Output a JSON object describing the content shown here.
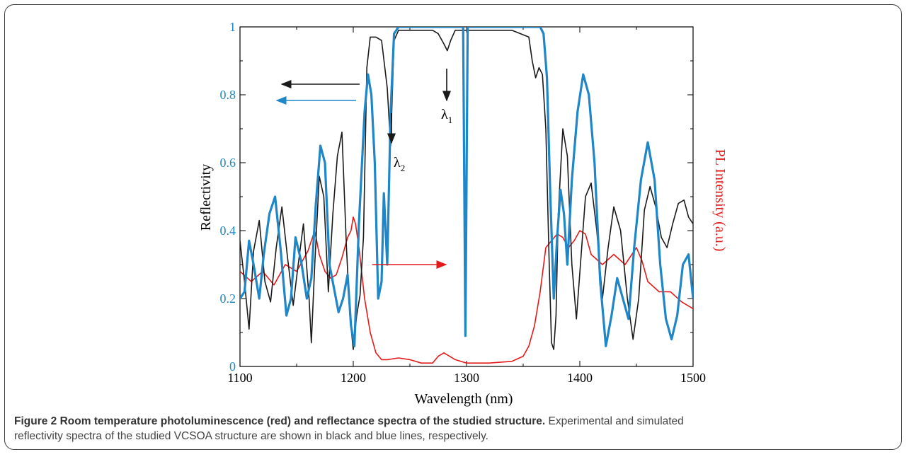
{
  "chart_data": {
    "type": "line",
    "xlabel": "Wavelength (nm)",
    "ylabel_left": "Reflectivity",
    "ylabel_right": "PL Intensity (a.u.)",
    "xlim": [
      1100,
      1500
    ],
    "ylim": [
      0,
      1
    ],
    "x_ticks": [
      "1100",
      "1200",
      "1300",
      "1400",
      "1500"
    ],
    "y_ticks": [
      "0",
      "0.2",
      "0.4",
      "0.6",
      "0.8",
      "1"
    ],
    "grid": false,
    "annotations": [
      {
        "text": "λ",
        "sub": "1",
        "x": 1283,
        "y": 0.73
      },
      {
        "text": "λ",
        "sub": "2",
        "x": 1234,
        "y": 0.59
      }
    ],
    "colors": {
      "experimental": "#1a1a1a",
      "simulated": "#1f86c8",
      "pl": "#e41a1a",
      "left_axis_ticks": "#1f86c8",
      "right_axis_label": "#e41a1a"
    },
    "series": [
      {
        "x": [
          1100,
          1104,
          1108,
          1112,
          1117,
          1122,
          1127,
          1132,
          1137,
          1142,
          1147,
          1151,
          1156,
          1161,
          1163,
          1166,
          1170,
          1174,
          1178,
          1182,
          1186,
          1190,
          1194,
          1197,
          1200,
          1203,
          1206,
          1209,
          1212,
          1215,
          1220,
          1225,
          1230,
          1233,
          1236,
          1240,
          1250,
          1260,
          1270,
          1275,
          1280,
          1283,
          1286,
          1290,
          1300,
          1320,
          1340,
          1355,
          1358,
          1361,
          1364,
          1367,
          1370,
          1373,
          1375,
          1377,
          1379,
          1381,
          1385,
          1389,
          1393,
          1397,
          1401,
          1405,
          1410,
          1415,
          1420,
          1425,
          1430,
          1436,
          1442,
          1447,
          1452,
          1457,
          1462,
          1467,
          1472,
          1477,
          1482,
          1487,
          1492,
          1496,
          1500
        ],
        "y": [
          0.37,
          0.25,
          0.11,
          0.34,
          0.43,
          0.25,
          0.19,
          0.35,
          0.47,
          0.32,
          0.18,
          0.29,
          0.42,
          0.2,
          0.07,
          0.3,
          0.56,
          0.5,
          0.22,
          0.45,
          0.62,
          0.69,
          0.35,
          0.15,
          0.05,
          0.15,
          0.21,
          0.38,
          0.88,
          0.97,
          0.97,
          0.96,
          0.82,
          0.65,
          0.96,
          0.99,
          0.99,
          0.99,
          0.99,
          0.98,
          0.95,
          0.93,
          0.96,
          0.99,
          0.99,
          0.99,
          0.99,
          0.97,
          0.9,
          0.85,
          0.88,
          0.86,
          0.7,
          0.3,
          0.07,
          0.05,
          0.15,
          0.45,
          0.7,
          0.62,
          0.3,
          0.14,
          0.32,
          0.5,
          0.54,
          0.4,
          0.2,
          0.35,
          0.47,
          0.4,
          0.2,
          0.08,
          0.2,
          0.46,
          0.53,
          0.47,
          0.38,
          0.35,
          0.42,
          0.48,
          0.49,
          0.44,
          0.42
        ]
      },
      {
        "x": [
          1100,
          1104,
          1108,
          1112,
          1117,
          1121,
          1126,
          1131,
          1136,
          1141,
          1145,
          1149,
          1154,
          1159,
          1163,
          1167,
          1171,
          1175,
          1179,
          1183,
          1187,
          1191,
          1195,
          1198,
          1201,
          1205,
          1210,
          1213,
          1216,
          1219,
          1222,
          1225,
          1227,
          1230,
          1233,
          1236,
          1240,
          1250,
          1270,
          1290,
          1297,
          1299,
          1301,
          1303,
          1310,
          1330,
          1350,
          1365,
          1368,
          1371,
          1374,
          1377,
          1380,
          1383,
          1386,
          1389,
          1393,
          1398,
          1403,
          1408,
          1413,
          1418,
          1423,
          1428,
          1433,
          1438,
          1443,
          1448,
          1454,
          1460,
          1466,
          1471,
          1476,
          1481,
          1486,
          1491,
          1496,
          1500
        ],
        "y": [
          0.2,
          0.22,
          0.37,
          0.3,
          0.2,
          0.33,
          0.45,
          0.5,
          0.34,
          0.15,
          0.2,
          0.38,
          0.31,
          0.2,
          0.26,
          0.48,
          0.65,
          0.6,
          0.3,
          0.23,
          0.16,
          0.2,
          0.27,
          0.12,
          0.06,
          0.42,
          0.75,
          0.86,
          0.8,
          0.6,
          0.2,
          0.25,
          0.51,
          0.3,
          0.75,
          0.98,
          1.0,
          1.0,
          1.0,
          1.0,
          1.0,
          0.09,
          1.0,
          1.0,
          1.0,
          1.0,
          1.0,
          1.0,
          0.98,
          0.85,
          0.5,
          0.2,
          0.38,
          0.52,
          0.45,
          0.3,
          0.55,
          0.75,
          0.86,
          0.8,
          0.6,
          0.25,
          0.06,
          0.15,
          0.26,
          0.2,
          0.14,
          0.35,
          0.55,
          0.66,
          0.55,
          0.3,
          0.14,
          0.08,
          0.15,
          0.3,
          0.33,
          0.2
        ]
      },
      {
        "x": [
          1100,
          1110,
          1120,
          1130,
          1140,
          1150,
          1160,
          1166,
          1170,
          1175,
          1180,
          1185,
          1190,
          1195,
          1198,
          1200,
          1202,
          1205,
          1210,
          1215,
          1220,
          1225,
          1230,
          1240,
          1250,
          1260,
          1270,
          1275,
          1280,
          1285,
          1290,
          1300,
          1320,
          1340,
          1350,
          1355,
          1360,
          1365,
          1370,
          1375,
          1380,
          1385,
          1390,
          1395,
          1400,
          1405,
          1410,
          1420,
          1430,
          1440,
          1450,
          1455,
          1460,
          1470,
          1480,
          1490,
          1500
        ],
        "y": [
          0.28,
          0.25,
          0.28,
          0.24,
          0.3,
          0.28,
          0.34,
          0.4,
          0.33,
          0.28,
          0.26,
          0.27,
          0.32,
          0.38,
          0.4,
          0.44,
          0.42,
          0.35,
          0.2,
          0.1,
          0.04,
          0.02,
          0.02,
          0.025,
          0.02,
          0.01,
          0.01,
          0.03,
          0.04,
          0.03,
          0.02,
          0.01,
          0.01,
          0.015,
          0.03,
          0.06,
          0.12,
          0.22,
          0.35,
          0.37,
          0.39,
          0.38,
          0.35,
          0.37,
          0.4,
          0.39,
          0.33,
          0.3,
          0.33,
          0.3,
          0.35,
          0.31,
          0.25,
          0.22,
          0.22,
          0.19,
          0.17
        ]
      }
    ]
  },
  "caption": {
    "figure_label": "Figure 2",
    "title": "Room temperature photoluminescence (red) and reflectance spectra of the studied structure.",
    "line1": "Experimental and simulated",
    "line2": "reflectivity spectra of the studied VCSOA structure are shown in black and blue lines, respectively."
  }
}
